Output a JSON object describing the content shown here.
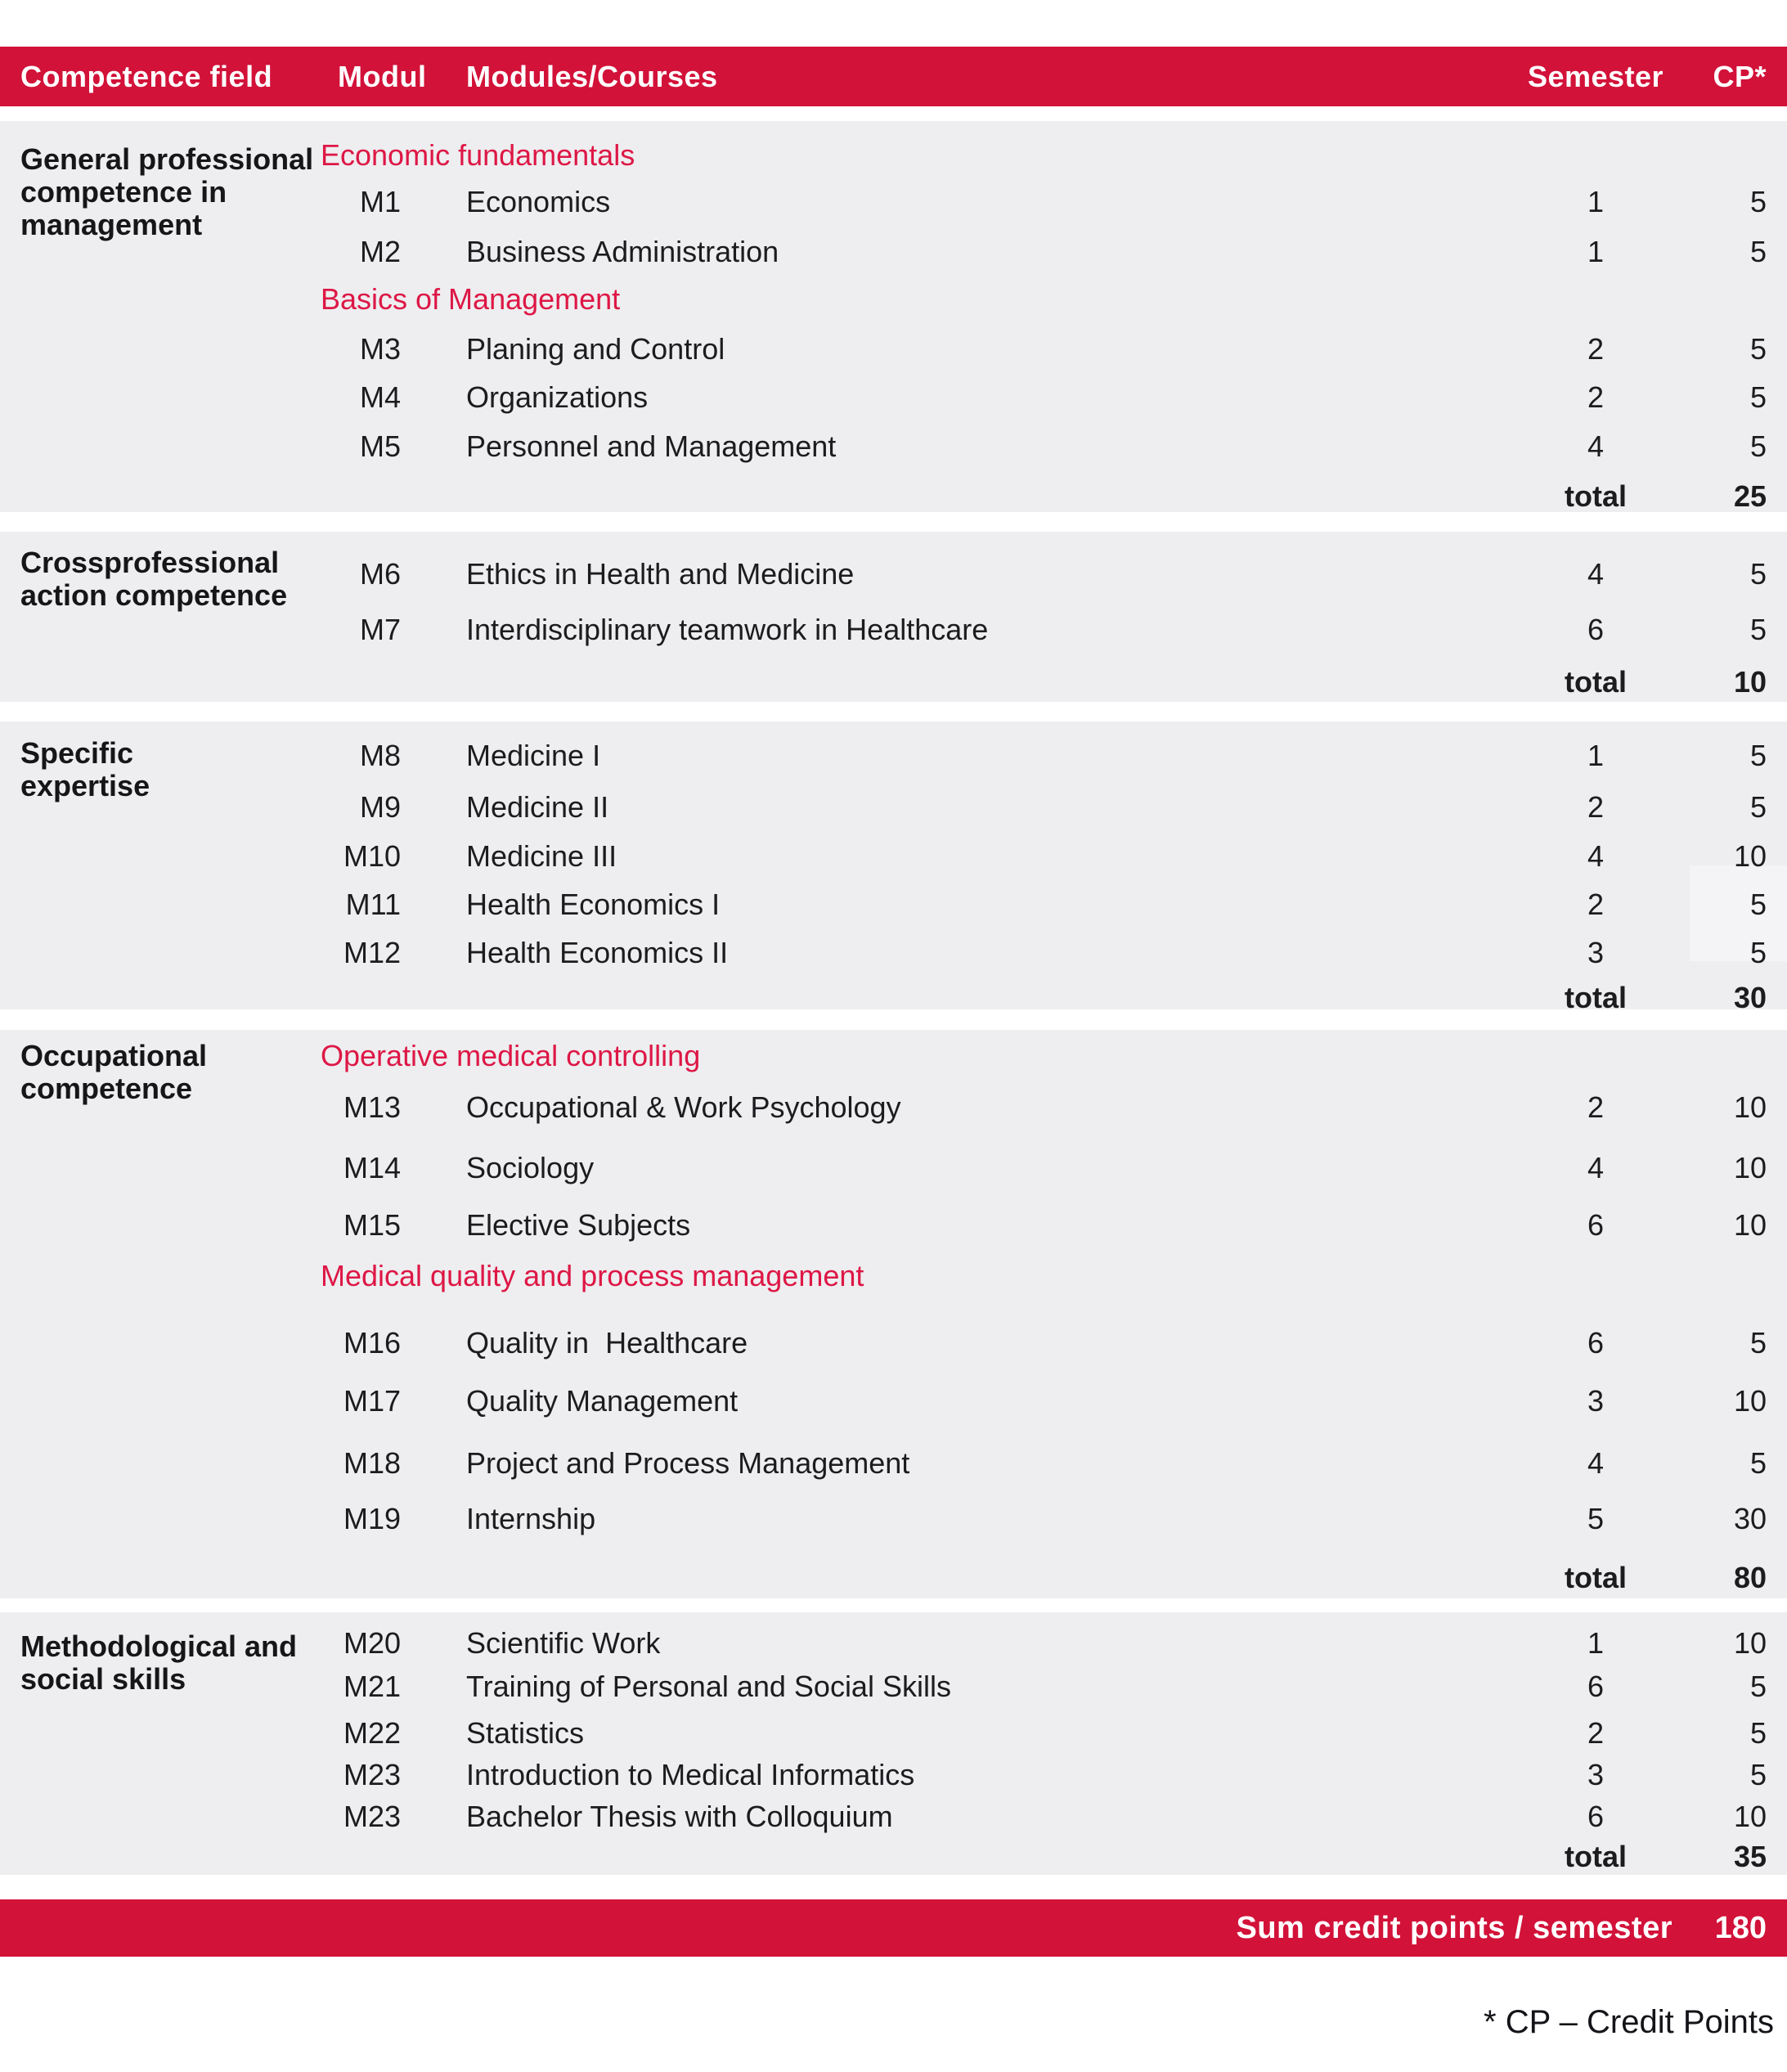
{
  "colors": {
    "bar_red": "#d21239",
    "subhead_red": "#dd1745",
    "section_bg": "#eeedf0",
    "highlight_bg": "#f4f3f6",
    "text_dark": "#1c1c1f"
  },
  "table": {
    "header": {
      "competence_field": "Competence field",
      "modul": "Modul",
      "modules_courses": "Modules/Courses",
      "semester": "Semester",
      "cp": "CP*"
    },
    "sections": [
      {
        "field": "General professional\ncompetence in\nmanagement",
        "rows": [
          {
            "type": "subhead",
            "label": "Economic fundamentals"
          },
          {
            "type": "course",
            "modul": "M1",
            "course": "Economics",
            "semester": "1",
            "cp": "5"
          },
          {
            "type": "course",
            "modul": "M2",
            "course": "Business Administration",
            "semester": "1",
            "cp": "5"
          },
          {
            "type": "subhead",
            "label": "Basics of Management"
          },
          {
            "type": "course",
            "modul": "M3",
            "course": "Planing and Control",
            "semester": "2",
            "cp": "5"
          },
          {
            "type": "course",
            "modul": "M4",
            "course": "Organizations",
            "semester": "2",
            "cp": "5"
          },
          {
            "type": "course",
            "modul": "M5",
            "course": "Personnel and Management",
            "semester": "4",
            "cp": "5"
          },
          {
            "type": "total",
            "label": "total",
            "cp": "25"
          }
        ]
      },
      {
        "field": "Crossprofessional\naction competence",
        "rows": [
          {
            "type": "course",
            "modul": "M6",
            "course": "Ethics in Health and Medicine",
            "semester": "4",
            "cp": "5"
          },
          {
            "type": "course",
            "modul": "M7",
            "course": "Interdisciplinary teamwork in Healthcare",
            "semester": "6",
            "cp": "5"
          },
          {
            "type": "total",
            "label": "total",
            "cp": "10"
          }
        ]
      },
      {
        "field": "Specific\nexpertise",
        "rows": [
          {
            "type": "course",
            "modul": "M8",
            "course": "Medicine I",
            "semester": "1",
            "cp": "5"
          },
          {
            "type": "course",
            "modul": "M9",
            "course": "Medicine II",
            "semester": "2",
            "cp": "5"
          },
          {
            "type": "course",
            "modul": "M10",
            "course": "Medicine III",
            "semester": "4",
            "cp": "10"
          },
          {
            "type": "course",
            "modul": "M11",
            "course": "Health Economics I",
            "semester": "2",
            "cp": "5"
          },
          {
            "type": "course",
            "modul": "M12",
            "course": "Health Economics II",
            "semester": "3",
            "cp": "5"
          },
          {
            "type": "total",
            "label": "total",
            "cp": "30"
          }
        ]
      },
      {
        "field": "Occupational\ncompetence",
        "rows": [
          {
            "type": "subhead",
            "label": "Operative medical controlling"
          },
          {
            "type": "course",
            "modul": "M13",
            "course": "Occupational & Work Psychology",
            "semester": "2",
            "cp": "10"
          },
          {
            "type": "course",
            "modul": "M14",
            "course": "Sociology",
            "semester": "4",
            "cp": "10"
          },
          {
            "type": "course",
            "modul": "M15",
            "course": "Elective Subjects",
            "semester": "6",
            "cp": "10"
          },
          {
            "type": "subhead",
            "label": "Medical quality and process management"
          },
          {
            "type": "course",
            "modul": "M16",
            "course": "Quality in  Healthcare",
            "semester": "6",
            "cp": "5"
          },
          {
            "type": "course",
            "modul": "M17",
            "course": "Quality Management",
            "semester": "3",
            "cp": "10"
          },
          {
            "type": "course",
            "modul": "M18",
            "course": "Project and Process Management",
            "semester": "4",
            "cp": "5"
          },
          {
            "type": "course",
            "modul": "M19",
            "course": "Internship",
            "semester": "5",
            "cp": "30"
          },
          {
            "type": "total",
            "label": "total",
            "cp": "80"
          }
        ]
      },
      {
        "field": "Methodological and\nsocial skills",
        "rows": [
          {
            "type": "course",
            "modul": "M20",
            "course": "Scientific Work",
            "semester": "1",
            "cp": "10"
          },
          {
            "type": "course",
            "modul": "M21",
            "course": "Training of Personal and Social Skills",
            "semester": "6",
            "cp": "5"
          },
          {
            "type": "course",
            "modul": "M22",
            "course": "Statistics",
            "semester": "2",
            "cp": "5"
          },
          {
            "type": "course",
            "modul": "M23",
            "course": "Introduction to Medical Informatics",
            "semester": "3",
            "cp": "5"
          },
          {
            "type": "course",
            "modul": "M23",
            "course": "Bachelor Thesis with Colloquium",
            "semester": "6",
            "cp": "10"
          },
          {
            "type": "total",
            "label": "total",
            "cp": "35"
          }
        ]
      }
    ],
    "footer": {
      "label": "Sum credit points / semester",
      "value": "180"
    },
    "footnote": "* CP – Credit Points"
  }
}
